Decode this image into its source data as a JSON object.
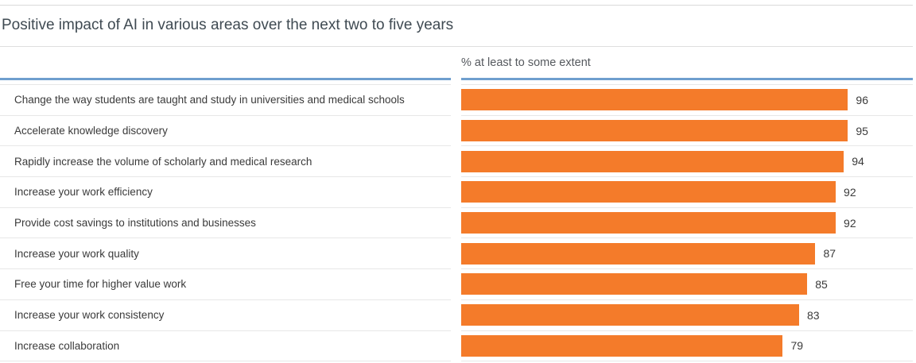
{
  "header": {
    "title": "Positive impact of AI in various areas over the next two to five years"
  },
  "chart_data": {
    "type": "bar",
    "orientation": "horizontal",
    "title": "Positive impact of AI in various areas over the next two to five years",
    "column_header": "% at least to some extent",
    "categories": [
      "Change the way students are taught and study in universities and medical schools",
      "Accelerate knowledge discovery",
      "Rapidly increase the volume of scholarly and medical research",
      "Increase your work efficiency",
      "Provide cost savings to institutions and businesses",
      "Increase your work quality",
      "Free your time for higher value work",
      "Increase your work consistency",
      "Increase collaboration"
    ],
    "values": [
      96,
      95,
      94,
      92,
      92,
      87,
      85,
      83,
      79
    ],
    "xlim": [
      0,
      100
    ],
    "grid": false,
    "legend": false,
    "colors": {
      "bar": "#f47b2a",
      "accent_rule": "#6f9fce",
      "row_divider": "#e7e7e7",
      "title_text": "#3f4a52",
      "label_text": "#3a3a3a",
      "header_text": "#55595e"
    }
  }
}
